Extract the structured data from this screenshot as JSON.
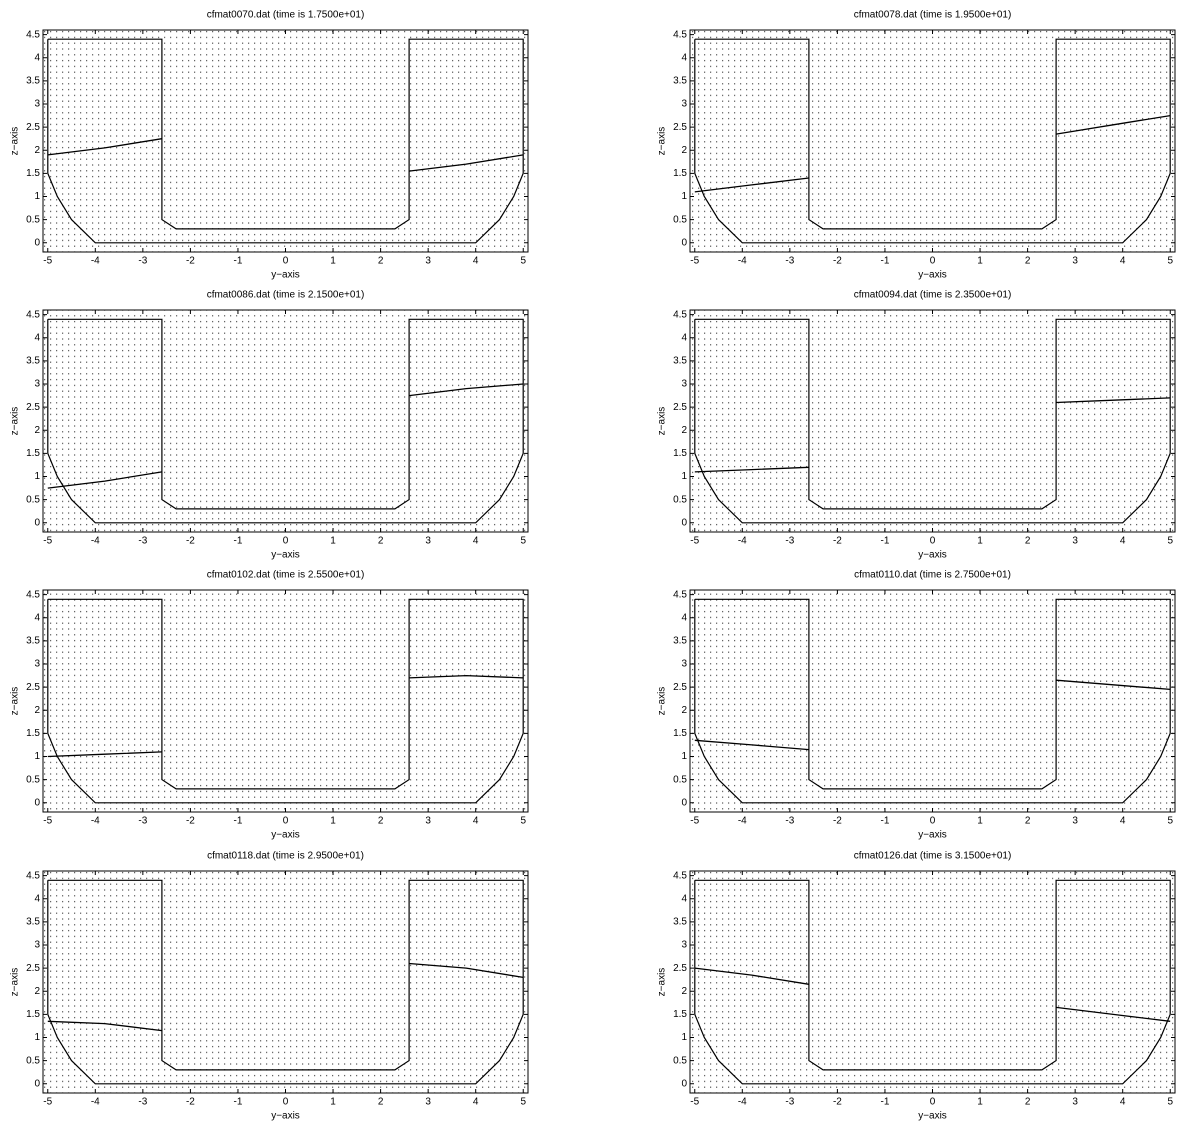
{
  "chart_data": [
    {
      "type": "quiver",
      "title": "cfmat0070.dat (time is 1.7500e+01)",
      "x_label": "y−axis",
      "y_label": "z−axis",
      "xlim": [
        -5.1,
        5.1
      ],
      "ylim": [
        -0.2,
        4.6
      ],
      "xticks": [
        -5,
        -4,
        -3,
        -2,
        -1,
        0,
        1,
        2,
        3,
        4,
        5
      ],
      "yticks": [
        0,
        0.5,
        1,
        1.5,
        2,
        2.5,
        3,
        3.5,
        4,
        4.5
      ],
      "outline": {
        "x": [
          -5,
          -2.6,
          -2.6,
          -2.3,
          2.3,
          2.6,
          2.6,
          5,
          5,
          4.8,
          4.5,
          4,
          -4,
          -4.5,
          -4.8,
          -5,
          -5
        ],
        "y": [
          4.4,
          4.4,
          0.5,
          0.3,
          0.3,
          0.5,
          4.4,
          4.4,
          1.5,
          1.0,
          0.5,
          0,
          0,
          0.5,
          1.0,
          1.5,
          4.4
        ]
      },
      "series": [
        {
          "color": "#000000",
          "x": [
            -5,
            -3.8,
            -2.6
          ],
          "values": [
            1.9,
            2.05,
            2.25
          ]
        },
        {
          "color": "#000000",
          "x": [
            2.6,
            3.8,
            5
          ],
          "values": [
            1.55,
            1.7,
            1.9
          ]
        }
      ]
    },
    {
      "type": "quiver",
      "title": "cfmat0078.dat (time is 1.9500e+01)",
      "x_label": "y−axis",
      "y_label": "z−axis",
      "xlim": [
        -5.1,
        5.1
      ],
      "ylim": [
        -0.2,
        4.6
      ],
      "xticks": [
        -5,
        -4,
        -3,
        -2,
        -1,
        0,
        1,
        2,
        3,
        4,
        5
      ],
      "yticks": [
        0,
        0.5,
        1,
        1.5,
        2,
        2.5,
        3,
        3.5,
        4,
        4.5
      ],
      "outline": {
        "x": [
          -5,
          -2.6,
          -2.6,
          -2.3,
          2.3,
          2.6,
          2.6,
          5,
          5,
          4.8,
          4.5,
          4,
          -4,
          -4.5,
          -4.8,
          -5,
          -5
        ],
        "y": [
          4.4,
          4.4,
          0.5,
          0.3,
          0.3,
          0.5,
          4.4,
          4.4,
          1.5,
          1.0,
          0.5,
          0,
          0,
          0.5,
          1.0,
          1.5,
          4.4
        ]
      },
      "series": [
        {
          "color": "#000000",
          "x": [
            -5,
            -3.8,
            -2.6
          ],
          "values": [
            1.1,
            1.25,
            1.4
          ]
        },
        {
          "color": "#000000",
          "x": [
            2.6,
            3.8,
            5
          ],
          "values": [
            2.35,
            2.55,
            2.75
          ]
        }
      ]
    },
    {
      "type": "quiver",
      "title": "cfmat0086.dat (time is 2.1500e+01)",
      "x_label": "y−axis",
      "y_label": "z−axis",
      "xlim": [
        -5.1,
        5.1
      ],
      "ylim": [
        -0.2,
        4.6
      ],
      "xticks": [
        -5,
        -4,
        -3,
        -2,
        -1,
        0,
        1,
        2,
        3,
        4,
        5
      ],
      "yticks": [
        0,
        0.5,
        1,
        1.5,
        2,
        2.5,
        3,
        3.5,
        4,
        4.5
      ],
      "outline": {
        "x": [
          -5,
          -2.6,
          -2.6,
          -2.3,
          2.3,
          2.6,
          2.6,
          5,
          5,
          4.8,
          4.5,
          4,
          -4,
          -4.5,
          -4.8,
          -5,
          -5
        ],
        "y": [
          4.4,
          4.4,
          0.5,
          0.3,
          0.3,
          0.5,
          4.4,
          4.4,
          1.5,
          1.0,
          0.5,
          0,
          0,
          0.5,
          1.0,
          1.5,
          4.4
        ]
      },
      "series": [
        {
          "color": "#000000",
          "x": [
            -5,
            -3.8,
            -2.6
          ],
          "values": [
            0.75,
            0.9,
            1.1
          ]
        },
        {
          "color": "#000000",
          "x": [
            2.6,
            3.8,
            5
          ],
          "values": [
            2.75,
            2.9,
            3.0
          ]
        }
      ]
    },
    {
      "type": "quiver",
      "title": "cfmat0094.dat (time is 2.3500e+01)",
      "x_label": "y−axis",
      "y_label": "z−axis",
      "xlim": [
        -5.1,
        5.1
      ],
      "ylim": [
        -0.2,
        4.6
      ],
      "xticks": [
        -5,
        -4,
        -3,
        -2,
        -1,
        0,
        1,
        2,
        3,
        4,
        5
      ],
      "yticks": [
        0,
        0.5,
        1,
        1.5,
        2,
        2.5,
        3,
        3.5,
        4,
        4.5
      ],
      "outline": {
        "x": [
          -5,
          -2.6,
          -2.6,
          -2.3,
          2.3,
          2.6,
          2.6,
          5,
          5,
          4.8,
          4.5,
          4,
          -4,
          -4.5,
          -4.8,
          -5,
          -5
        ],
        "y": [
          4.4,
          4.4,
          0.5,
          0.3,
          0.3,
          0.5,
          4.4,
          4.4,
          1.5,
          1.0,
          0.5,
          0,
          0,
          0.5,
          1.0,
          1.5,
          4.4
        ]
      },
      "series": [
        {
          "color": "#000000",
          "x": [
            -5,
            -3.8,
            -2.6
          ],
          "values": [
            1.1,
            1.15,
            1.2
          ]
        },
        {
          "color": "#000000",
          "x": [
            2.6,
            3.8,
            5
          ],
          "values": [
            2.6,
            2.65,
            2.7
          ]
        }
      ]
    },
    {
      "type": "quiver",
      "title": "cfmat0102.dat (time is 2.5500e+01)",
      "x_label": "y−axis",
      "y_label": "z−axis",
      "xlim": [
        -5.1,
        5.1
      ],
      "ylim": [
        -0.2,
        4.6
      ],
      "xticks": [
        -5,
        -4,
        -3,
        -2,
        -1,
        0,
        1,
        2,
        3,
        4,
        5
      ],
      "yticks": [
        0,
        0.5,
        1,
        1.5,
        2,
        2.5,
        3,
        3.5,
        4,
        4.5
      ],
      "outline": {
        "x": [
          -5,
          -2.6,
          -2.6,
          -2.3,
          2.3,
          2.6,
          2.6,
          5,
          5,
          4.8,
          4.5,
          4,
          -4,
          -4.5,
          -4.8,
          -5,
          -5
        ],
        "y": [
          4.4,
          4.4,
          0.5,
          0.3,
          0.3,
          0.5,
          4.4,
          4.4,
          1.5,
          1.0,
          0.5,
          0,
          0,
          0.5,
          1.0,
          1.5,
          4.4
        ]
      },
      "series": [
        {
          "color": "#000000",
          "x": [
            -5,
            -3.8,
            -2.6
          ],
          "values": [
            1.0,
            1.05,
            1.1
          ]
        },
        {
          "color": "#000000",
          "x": [
            2.6,
            3.8,
            5
          ],
          "values": [
            2.7,
            2.75,
            2.7
          ]
        }
      ]
    },
    {
      "type": "quiver",
      "title": "cfmat0110.dat (time is 2.7500e+01)",
      "x_label": "y−axis",
      "y_label": "z−axis",
      "xlim": [
        -5.1,
        5.1
      ],
      "ylim": [
        -0.2,
        4.6
      ],
      "xticks": [
        -5,
        -4,
        -3,
        -2,
        -1,
        0,
        1,
        2,
        3,
        4,
        5
      ],
      "yticks": [
        0,
        0.5,
        1,
        1.5,
        2,
        2.5,
        3,
        3.5,
        4,
        4.5
      ],
      "outline": {
        "x": [
          -5,
          -2.6,
          -2.6,
          -2.3,
          2.3,
          2.6,
          2.6,
          5,
          5,
          4.8,
          4.5,
          4,
          -4,
          -4.5,
          -4.8,
          -5,
          -5
        ],
        "y": [
          4.4,
          4.4,
          0.5,
          0.3,
          0.3,
          0.5,
          4.4,
          4.4,
          1.5,
          1.0,
          0.5,
          0,
          0,
          0.5,
          1.0,
          1.5,
          4.4
        ]
      },
      "series": [
        {
          "color": "#000000",
          "x": [
            -5,
            -3.8,
            -2.6
          ],
          "values": [
            1.35,
            1.25,
            1.15
          ]
        },
        {
          "color": "#000000",
          "x": [
            2.6,
            3.8,
            5
          ],
          "values": [
            2.65,
            2.55,
            2.45
          ]
        }
      ]
    },
    {
      "type": "quiver",
      "title": "cfmat0118.dat (time is 2.9500e+01)",
      "x_label": "y−axis",
      "y_label": "z−axis",
      "xlim": [
        -5.1,
        5.1
      ],
      "ylim": [
        -0.2,
        4.6
      ],
      "xticks": [
        -5,
        -4,
        -3,
        -2,
        -1,
        0,
        1,
        2,
        3,
        4,
        5
      ],
      "yticks": [
        0,
        0.5,
        1,
        1.5,
        2,
        2.5,
        3,
        3.5,
        4,
        4.5
      ],
      "outline": {
        "x": [
          -5,
          -2.6,
          -2.6,
          -2.3,
          2.3,
          2.6,
          2.6,
          5,
          5,
          4.8,
          4.5,
          4,
          -4,
          -4.5,
          -4.8,
          -5,
          -5
        ],
        "y": [
          4.4,
          4.4,
          0.5,
          0.3,
          0.3,
          0.5,
          4.4,
          4.4,
          1.5,
          1.0,
          0.5,
          0,
          0,
          0.5,
          1.0,
          1.5,
          4.4
        ]
      },
      "series": [
        {
          "color": "#000000",
          "x": [
            -5,
            -3.8,
            -2.6
          ],
          "values": [
            1.35,
            1.3,
            1.15
          ]
        },
        {
          "color": "#000000",
          "x": [
            2.6,
            3.8,
            5
          ],
          "values": [
            2.6,
            2.5,
            2.3
          ]
        }
      ]
    },
    {
      "type": "quiver",
      "title": "cfmat0126.dat (time is 3.1500e+01)",
      "x_label": "y−axis",
      "y_label": "z−axis",
      "xlim": [
        -5.1,
        5.1
      ],
      "ylim": [
        -0.2,
        4.6
      ],
      "xticks": [
        -5,
        -4,
        -3,
        -2,
        -1,
        0,
        1,
        2,
        3,
        4,
        5
      ],
      "yticks": [
        0,
        0.5,
        1,
        1.5,
        2,
        2.5,
        3,
        3.5,
        4,
        4.5
      ],
      "outline": {
        "x": [
          -5,
          -2.6,
          -2.6,
          -2.3,
          2.3,
          2.6,
          2.6,
          5,
          5,
          4.8,
          4.5,
          4,
          -4,
          -4.5,
          -4.8,
          -5,
          -5
        ],
        "y": [
          4.4,
          4.4,
          0.5,
          0.3,
          0.3,
          0.5,
          4.4,
          4.4,
          1.5,
          1.0,
          0.5,
          0,
          0,
          0.5,
          1.0,
          1.5,
          4.4
        ]
      },
      "series": [
        {
          "color": "#000000",
          "x": [
            -5,
            -3.8,
            -2.6
          ],
          "values": [
            2.5,
            2.35,
            2.15
          ]
        },
        {
          "color": "#000000",
          "x": [
            2.6,
            3.8,
            5
          ],
          "values": [
            1.65,
            1.5,
            1.35
          ]
        }
      ]
    }
  ]
}
